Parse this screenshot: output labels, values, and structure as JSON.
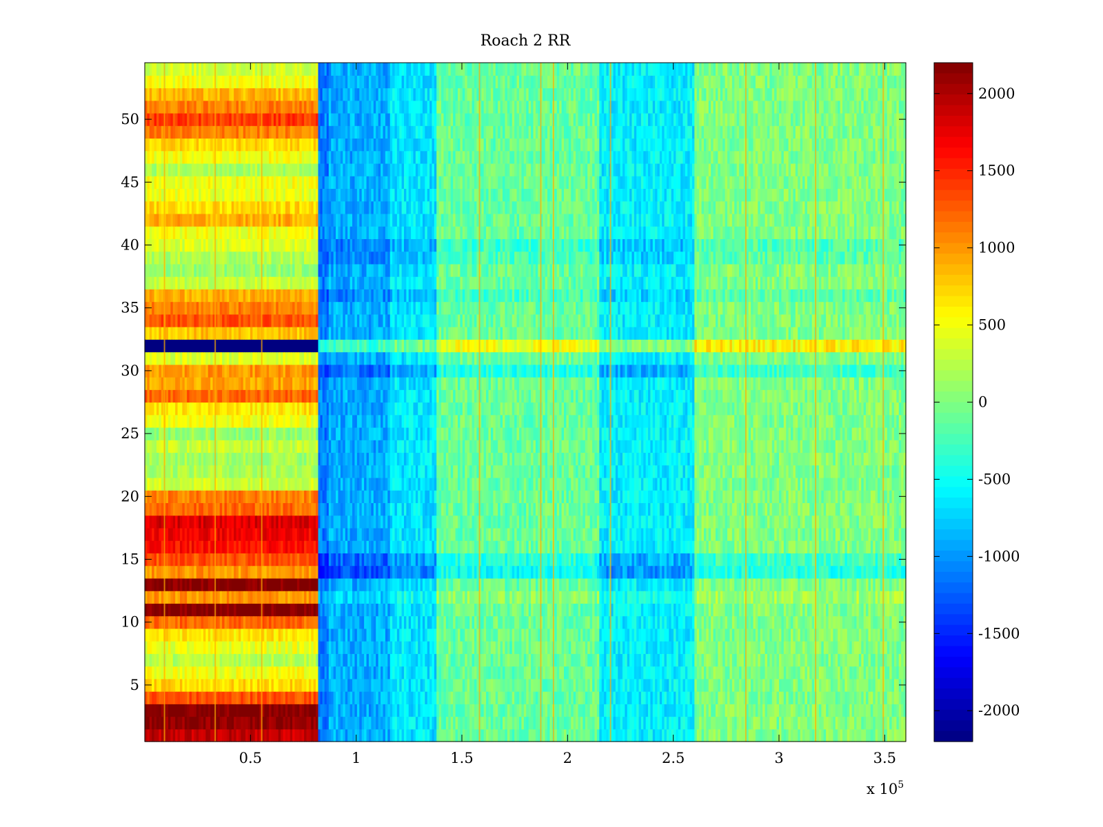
{
  "chart_data": {
    "type": "heatmap",
    "title": "Roach 2 RR",
    "xlabel": "",
    "ylabel": "",
    "x_multiplier_base": "x 10",
    "x_multiplier_exp": "5",
    "xlim": [
      0,
      3.6
    ],
    "ylim": [
      0.5,
      54.5
    ],
    "xticks": [
      0.5,
      1,
      1.5,
      2,
      2.5,
      3,
      3.5
    ],
    "xtick_labels": [
      "0.5",
      "1",
      "1.5",
      "2",
      "2.5",
      "3",
      "3.5"
    ],
    "yticks": [
      5,
      10,
      15,
      20,
      25,
      30,
      35,
      40,
      45,
      50
    ],
    "ytick_labels": [
      "5",
      "10",
      "15",
      "20",
      "25",
      "30",
      "35",
      "40",
      "45",
      "50"
    ],
    "rows": 54,
    "x_segments": [
      {
        "x_start": 0,
        "x_end": 0.82,
        "pattern": "row_level"
      },
      {
        "x_start": 0.82,
        "x_end": 0.87,
        "value": -1100
      },
      {
        "x_start": 0.87,
        "x_end": 1.16,
        "value": -900
      },
      {
        "x_start": 1.16,
        "x_end": 1.38,
        "value": -650
      },
      {
        "x_start": 1.38,
        "x_end": 2.15,
        "value": -100
      },
      {
        "x_start": 2.15,
        "x_end": 2.6,
        "value": -600
      },
      {
        "x_start": 2.6,
        "x_end": 3.6,
        "value": 0
      }
    ],
    "row_levels_segment_1": [
      1900,
      2150,
      2200,
      1300,
      700,
      500,
      250,
      450,
      650,
      1200,
      2200,
      1000,
      2200,
      1000,
      1300,
      1600,
      1700,
      1800,
      1200,
      1100,
      350,
      200,
      150,
      300,
      100,
      500,
      650,
      1200,
      950,
      1000,
      400,
      -2200,
      800,
      1300,
      1100,
      900,
      300,
      100,
      200,
      400,
      500,
      900,
      700,
      450,
      500,
      200,
      500,
      700,
      1100,
      1400,
      1100,
      850,
      500,
      350
    ],
    "row_offsets": [
      0,
      0,
      0,
      0,
      0,
      0,
      0,
      0,
      0,
      0,
      0,
      150,
      0,
      -400,
      -300,
      0,
      0,
      0,
      0,
      0,
      0,
      0,
      0,
      0,
      0,
      0,
      0,
      0,
      0,
      -300,
      0,
      600,
      0,
      0,
      0,
      -150,
      0,
      0,
      -150,
      -200,
      0,
      0,
      0,
      0,
      0,
      0,
      0,
      0,
      0,
      0,
      0,
      0,
      0,
      0
    ],
    "bright_vertical_lines_x": [
      0.09,
      0.33,
      0.55,
      1.58,
      1.87,
      1.93,
      2.2,
      2.84,
      3.17,
      3.49
    ],
    "colorbar": {
      "colormap": "jet",
      "vmin": -2200,
      "vmax": 2200,
      "ticks": [
        -2000,
        -1500,
        -1000,
        -500,
        0,
        500,
        1000,
        1500,
        2000
      ],
      "tick_labels": [
        "-2000",
        "-1500",
        "-1000",
        "-500",
        "0",
        "500",
        "1000",
        "1500",
        "2000"
      ]
    }
  }
}
